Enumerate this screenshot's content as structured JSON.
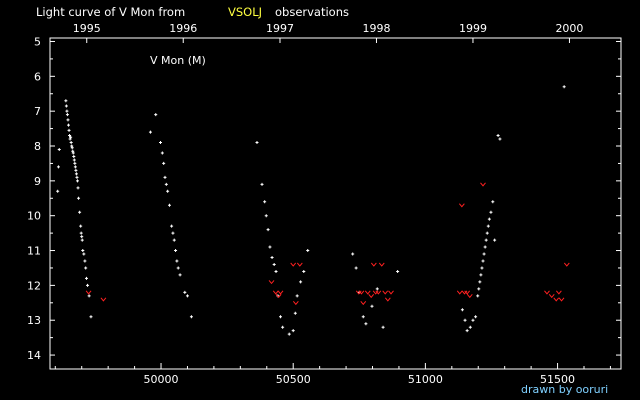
{
  "chart_data": {
    "type": "scatter",
    "title_prefix": "Light curve of V Mon from",
    "title_source": "VSOLJ",
    "title_suffix": "observations",
    "label": "V Mon (M)",
    "credit": "drawn by ooruri",
    "x_ticks": [
      50000,
      50500,
      51000,
      51500
    ],
    "x_tick_labels": [
      "50000",
      "50500",
      "51000",
      "51500"
    ],
    "y_ticks": [
      5,
      6,
      7,
      8,
      9,
      10,
      11,
      12,
      13,
      14
    ],
    "year_ticks": [
      {
        "label": "1995",
        "jd": 49719
      },
      {
        "label": "1996",
        "jd": 50084
      },
      {
        "label": "1997",
        "jd": 50450
      },
      {
        "label": "1998",
        "jd": 50815
      },
      {
        "label": "1999",
        "jd": 51180
      },
      {
        "label": "2000",
        "jd": 51545
      }
    ],
    "xlim": [
      49580,
      51740
    ],
    "ylim": [
      4.9,
      14.4
    ],
    "y_inverted": true,
    "colors": {
      "visual": "#ffffff",
      "fainter_than": "#ff2020",
      "source": "#ffff40"
    },
    "series": [
      {
        "kind": "visual",
        "points": [
          [
            49609,
            9.3
          ],
          [
            49612,
            8.6
          ],
          [
            49615,
            8.1
          ],
          [
            49640,
            6.7
          ],
          [
            49642,
            6.85
          ],
          [
            49644,
            7.0
          ],
          [
            49646,
            7.1
          ],
          [
            49648,
            7.25
          ],
          [
            49650,
            7.4
          ],
          [
            49652,
            7.55
          ],
          [
            49654,
            7.7
          ],
          [
            49656,
            7.8
          ],
          [
            49658,
            7.75
          ],
          [
            49660,
            7.9
          ],
          [
            49662,
            8.0
          ],
          [
            49664,
            8.05
          ],
          [
            49666,
            8.15
          ],
          [
            49668,
            8.2
          ],
          [
            49670,
            8.3
          ],
          [
            49672,
            8.4
          ],
          [
            49674,
            8.5
          ],
          [
            49676,
            8.6
          ],
          [
            49678,
            8.7
          ],
          [
            49680,
            8.8
          ],
          [
            49682,
            8.9
          ],
          [
            49684,
            9.0
          ],
          [
            49686,
            9.2
          ],
          [
            49688,
            9.5
          ],
          [
            49692,
            9.9
          ],
          [
            49696,
            10.3
          ],
          [
            49698,
            10.5
          ],
          [
            49700,
            10.6
          ],
          [
            49702,
            10.7
          ],
          [
            49704,
            11.0
          ],
          [
            49708,
            11.1
          ],
          [
            49712,
            11.3
          ],
          [
            49715,
            11.5
          ],
          [
            49718,
            11.8
          ],
          [
            49722,
            12.0
          ],
          [
            49728,
            12.3
          ],
          [
            49735,
            12.9
          ],
          [
            49960,
            7.6
          ],
          [
            49980,
            7.1
          ],
          [
            49998,
            7.9
          ],
          [
            50005,
            8.2
          ],
          [
            50010,
            8.5
          ],
          [
            50015,
            8.9
          ],
          [
            50020,
            9.1
          ],
          [
            50025,
            9.3
          ],
          [
            50032,
            9.7
          ],
          [
            50040,
            10.3
          ],
          [
            50045,
            10.5
          ],
          [
            50050,
            10.7
          ],
          [
            50055,
            11.0
          ],
          [
            50060,
            11.3
          ],
          [
            50065,
            11.5
          ],
          [
            50072,
            11.7
          ],
          [
            50090,
            12.2
          ],
          [
            50100,
            12.3
          ],
          [
            50115,
            12.9
          ],
          [
            50363,
            7.9
          ],
          [
            50382,
            9.1
          ],
          [
            50392,
            9.6
          ],
          [
            50398,
            10.0
          ],
          [
            50405,
            10.4
          ],
          [
            50412,
            10.9
          ],
          [
            50420,
            11.2
          ],
          [
            50428,
            11.4
          ],
          [
            50435,
            11.6
          ],
          [
            50442,
            12.3
          ],
          [
            50452,
            12.9
          ],
          [
            50460,
            13.2
          ],
          [
            50485,
            13.4
          ],
          [
            50500,
            13.3
          ],
          [
            50508,
            12.8
          ],
          [
            50515,
            12.3
          ],
          [
            50528,
            11.9
          ],
          [
            50540,
            11.6
          ],
          [
            50555,
            11.0
          ],
          [
            50725,
            11.1
          ],
          [
            50738,
            11.5
          ],
          [
            50750,
            12.2
          ],
          [
            50765,
            12.9
          ],
          [
            50775,
            13.1
          ],
          [
            50798,
            12.6
          ],
          [
            50818,
            12.1
          ],
          [
            50840,
            13.2
          ],
          [
            50895,
            11.6
          ],
          [
            51140,
            12.7
          ],
          [
            51150,
            13.0
          ],
          [
            51158,
            13.3
          ],
          [
            51170,
            13.2
          ],
          [
            51180,
            13.0
          ],
          [
            51190,
            12.9
          ],
          [
            51198,
            12.3
          ],
          [
            51202,
            12.1
          ],
          [
            51206,
            11.9
          ],
          [
            51210,
            11.7
          ],
          [
            51214,
            11.5
          ],
          [
            51218,
            11.3
          ],
          [
            51222,
            11.1
          ],
          [
            51226,
            10.9
          ],
          [
            51230,
            10.7
          ],
          [
            51234,
            10.5
          ],
          [
            51238,
            10.3
          ],
          [
            51242,
            10.1
          ],
          [
            51248,
            9.9
          ],
          [
            51255,
            9.6
          ],
          [
            51262,
            10.7
          ],
          [
            51275,
            7.7
          ],
          [
            51282,
            7.8
          ],
          [
            51525,
            6.3
          ]
        ]
      },
      {
        "kind": "fainter_than",
        "points": [
          [
            49726,
            12.2
          ],
          [
            49782,
            12.4
          ],
          [
            50418,
            11.9
          ],
          [
            50434,
            12.2
          ],
          [
            50445,
            12.3
          ],
          [
            50452,
            12.2
          ],
          [
            50500,
            11.4
          ],
          [
            50510,
            12.5
          ],
          [
            50525,
            11.4
          ],
          [
            50748,
            12.2
          ],
          [
            50758,
            12.2
          ],
          [
            50765,
            12.5
          ],
          [
            50782,
            12.2
          ],
          [
            50795,
            12.3
          ],
          [
            50805,
            11.4
          ],
          [
            50812,
            12.2
          ],
          [
            50822,
            12.2
          ],
          [
            50835,
            11.4
          ],
          [
            50848,
            12.2
          ],
          [
            50858,
            12.4
          ],
          [
            50870,
            12.2
          ],
          [
            51130,
            12.2
          ],
          [
            51138,
            9.7
          ],
          [
            51148,
            12.2
          ],
          [
            51158,
            12.2
          ],
          [
            51168,
            12.3
          ],
          [
            51218,
            9.1
          ],
          [
            51460,
            12.2
          ],
          [
            51478,
            12.3
          ],
          [
            51495,
            12.4
          ],
          [
            51505,
            12.2
          ],
          [
            51515,
            12.4
          ],
          [
            51535,
            11.4
          ]
        ]
      }
    ]
  }
}
